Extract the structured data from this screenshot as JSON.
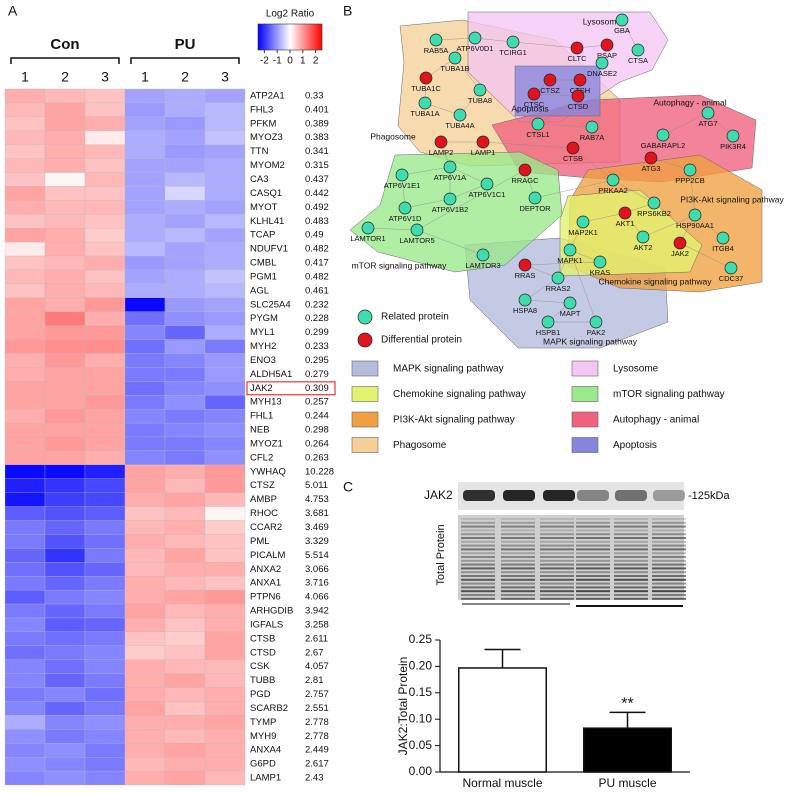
{
  "panel_labels": [
    "A",
    "B",
    "C"
  ],
  "chart_data": [
    {
      "type": "heatmap",
      "groups": [
        {
          "name": "Con",
          "columns": [
            "1",
            "2",
            "3"
          ]
        },
        {
          "name": "PU",
          "columns": [
            "1",
            "2",
            "3"
          ]
        }
      ],
      "colorbar": {
        "title": "Log2 Ratio",
        "ticks": [
          -2,
          -1,
          0,
          1,
          2
        ]
      },
      "zlim": [
        -2.5,
        2.5
      ],
      "highlight_row": 21,
      "rows": [
        "ATP2A1",
        "FHL3",
        "PFKM",
        "MYOZ3",
        "TTN",
        "MYOM2",
        "CA3",
        "CASQ1",
        "MYOT",
        "KLHL41",
        "TCAP",
        "NDUFV1",
        "CMBL",
        "PGM1",
        "AGL",
        "SLC25A4",
        "PYGM",
        "MYL1",
        "MYH2",
        "ENO3",
        "ALDH5A1",
        "JAK2",
        "MYH13",
        "FHL1",
        "NEB",
        "MYOZ1",
        "CFL2",
        "YWHAQ",
        "CTSZ",
        "AMBP",
        "RHOC",
        "CCAR2",
        "PML",
        "PICALM",
        "ANXA2",
        "ANXA1",
        "PTPN6",
        "ARHGDIB",
        "IGFALS",
        "CTSB",
        "CTSD",
        "CSK",
        "TUBB",
        "PGD",
        "SCARB2",
        "TYMP",
        "MYH9",
        "ANXA4",
        "G6PD",
        "LAMP1"
      ],
      "ratios": [
        "0.33",
        "0.401",
        "0.389",
        "0.383",
        "0.341",
        "0.315",
        "0.437",
        "0.442",
        "0.492",
        "0.483",
        "0.49",
        "0.482",
        "0.417",
        "0.482",
        "0.461",
        "0.232",
        "0.228",
        "0.299",
        "0.233",
        "0.295",
        "0.279",
        "0.309",
        "0.257",
        "0.244",
        "0.298",
        "0.264",
        "0.263",
        "10.228",
        "5.011",
        "4.753",
        "3.681",
        "3.469",
        "3.329",
        "5.514",
        "3.066",
        "3.716",
        "4.066",
        "3.942",
        "3.258",
        "2.611",
        "2.67",
        "4.057",
        "2.81",
        "2.757",
        "2.551",
        "2.778",
        "2.778",
        "2.449",
        "2.617",
        "2.43"
      ],
      "values": [
        [
          0.8,
          0.7,
          0.6,
          -0.9,
          -0.8,
          -0.9
        ],
        [
          0.7,
          0.9,
          0.6,
          -1.0,
          -0.8,
          -0.7
        ],
        [
          0.6,
          0.9,
          0.8,
          -0.9,
          -1.0,
          -0.7
        ],
        [
          0.7,
          0.8,
          0.2,
          -0.8,
          -0.9,
          -0.6
        ],
        [
          0.6,
          0.8,
          0.7,
          -0.8,
          -1.0,
          -0.9
        ],
        [
          0.7,
          0.8,
          0.6,
          -0.9,
          -0.9,
          -0.8
        ],
        [
          0.6,
          0.1,
          0.7,
          -0.9,
          -0.7,
          -0.8
        ],
        [
          0.9,
          0.6,
          0.6,
          -0.9,
          -0.4,
          -0.8
        ],
        [
          0.8,
          0.7,
          0.7,
          -0.9,
          -0.8,
          -0.9
        ],
        [
          0.6,
          0.7,
          0.6,
          -0.8,
          -0.9,
          -0.7
        ],
        [
          0.9,
          0.8,
          0.5,
          -0.8,
          -0.7,
          -0.9
        ],
        [
          0.2,
          0.8,
          0.6,
          -0.7,
          -0.9,
          -0.8
        ],
        [
          0.6,
          0.7,
          0.8,
          -1.0,
          -0.9,
          -0.8
        ],
        [
          0.7,
          0.8,
          0.6,
          -0.9,
          -0.8,
          -0.6
        ],
        [
          0.6,
          0.8,
          0.7,
          -0.8,
          -0.8,
          -0.7
        ],
        [
          0.9,
          0.8,
          1.0,
          -2.4,
          -1.0,
          -0.9
        ],
        [
          0.9,
          1.3,
          0.8,
          -1.4,
          -1.1,
          -1.0
        ],
        [
          0.9,
          1.0,
          1.0,
          -1.2,
          -1.5,
          -0.8
        ],
        [
          1.0,
          1.1,
          1.1,
          -1.4,
          -1.0,
          -1.3
        ],
        [
          0.8,
          1.0,
          0.8,
          -1.3,
          -1.2,
          -1.0
        ],
        [
          0.8,
          0.9,
          0.9,
          -1.3,
          -1.3,
          -1.0
        ],
        [
          0.9,
          0.9,
          0.9,
          -1.4,
          -1.2,
          -1.1
        ],
        [
          0.9,
          0.9,
          1.0,
          -1.3,
          -1.1,
          -1.5
        ],
        [
          0.8,
          1.0,
          0.9,
          -1.2,
          -1.3,
          -1.2
        ],
        [
          0.9,
          0.9,
          0.9,
          -1.3,
          -1.2,
          -1.1
        ],
        [
          0.9,
          1.0,
          0.9,
          -1.3,
          -1.3,
          -1.2
        ],
        [
          0.9,
          0.9,
          0.8,
          -1.2,
          -1.3,
          -1.1
        ],
        [
          -2.4,
          -2.4,
          -2.2,
          0.9,
          0.8,
          1.0
        ],
        [
          -2.2,
          -2.0,
          -1.8,
          0.9,
          0.7,
          1.0
        ],
        [
          -2.3,
          -1.9,
          -1.8,
          0.8,
          0.9,
          0.7
        ],
        [
          -1.6,
          -1.7,
          -1.6,
          0.6,
          0.7,
          0.1
        ],
        [
          -1.3,
          -1.5,
          -1.3,
          0.7,
          0.8,
          0.5
        ],
        [
          -1.3,
          -1.7,
          -1.4,
          0.8,
          0.7,
          0.6
        ],
        [
          -1.5,
          -2.0,
          -1.3,
          0.7,
          0.9,
          0.6
        ],
        [
          -1.4,
          -1.7,
          -1.5,
          0.7,
          0.8,
          0.8
        ],
        [
          -1.3,
          -1.5,
          -1.3,
          0.8,
          0.7,
          0.6
        ],
        [
          -1.6,
          -1.3,
          -1.2,
          0.8,
          0.9,
          1.0
        ],
        [
          -1.3,
          -1.5,
          -1.3,
          0.9,
          0.7,
          0.8
        ],
        [
          -1.2,
          -1.6,
          -1.5,
          0.8,
          0.6,
          0.8
        ],
        [
          -1.3,
          -1.4,
          -1.3,
          0.6,
          0.5,
          0.9
        ],
        [
          -1.4,
          -1.3,
          -1.2,
          0.5,
          0.6,
          0.9
        ],
        [
          -1.2,
          -1.4,
          -1.2,
          0.8,
          0.7,
          0.7
        ],
        [
          -1.2,
          -1.5,
          -1.3,
          0.8,
          0.9,
          0.7
        ],
        [
          -1.3,
          -1.2,
          -1.4,
          0.8,
          0.7,
          0.8
        ],
        [
          -1.2,
          -1.5,
          -1.3,
          0.9,
          0.6,
          0.8
        ],
        [
          -0.8,
          -1.2,
          -1.1,
          0.8,
          0.8,
          0.9
        ],
        [
          -1.1,
          -1.3,
          -1.2,
          0.8,
          0.7,
          0.8
        ],
        [
          -1.2,
          -1.1,
          -1.3,
          0.8,
          0.9,
          0.8
        ],
        [
          -1.1,
          -1.2,
          -1.3,
          0.7,
          0.8,
          0.8
        ],
        [
          -1.2,
          -1.1,
          -1.2,
          0.8,
          0.9,
          0.7
        ]
      ]
    },
    {
      "type": "bar",
      "categories": [
        "Normal muscle",
        "PU muscle"
      ],
      "values": [
        0.197,
        0.083
      ],
      "errors": [
        0.035,
        0.03
      ],
      "colors": [
        "#ffffff",
        "#000000"
      ],
      "y_label": "JAK2:Total Protein",
      "annotation": "**",
      "ylim": [
        0,
        0.25
      ],
      "yticks": [
        {
          "value": 0,
          "label": "0.00"
        },
        {
          "value": 0.05,
          "label": "0.05"
        },
        {
          "value": 0.1,
          "label": "0.10"
        },
        {
          "value": 0.15,
          "label": "0.15"
        },
        {
          "value": 0.2,
          "label": "0.20"
        },
        {
          "value": 0.25,
          "label": "0.25"
        }
      ]
    }
  ],
  "western_blot": {
    "protein": "JAK2",
    "size": "-125kDa",
    "loading": "Total Protein"
  },
  "network": {
    "node_kinds": [
      {
        "kind": "related",
        "label": "Related protein",
        "color": "#3fdcae"
      },
      {
        "kind": "differential",
        "label": "Differential protein",
        "color": "#e0141e"
      }
    ],
    "pathways": [
      {
        "name": "MAPK signaling pathway",
        "color": "#b4bbdb"
      },
      {
        "name": "Lysosome",
        "color": "#f3c6f3"
      },
      {
        "name": "Chemokine signaling pathway",
        "color": "#e2f26e"
      },
      {
        "name": "mTOR signaling pathway",
        "color": "#9ae98a"
      },
      {
        "name": "PI3K-Akt signaling pathway",
        "color": "#f0a040"
      },
      {
        "name": "Autophagy - animal",
        "color": "#f0607f"
      },
      {
        "name": "Phagosome",
        "color": "#f6cf98"
      },
      {
        "name": "Apoptosis",
        "color": "#8585dd"
      }
    ],
    "nodes": [
      {
        "label": "RAB5A",
        "kind": "related"
      },
      {
        "label": "ATP6V0D1",
        "kind": "related"
      },
      {
        "label": "TCIRG1",
        "kind": "related"
      },
      {
        "label": "GBA",
        "kind": "related"
      },
      {
        "label": "CLTC",
        "kind": "differential"
      },
      {
        "label": "PSAP",
        "kind": "differential"
      },
      {
        "label": "DNASE2",
        "kind": "related"
      },
      {
        "label": "CTSA",
        "kind": "related"
      },
      {
        "label": "TUBA1B",
        "kind": "related"
      },
      {
        "label": "TUBA1C",
        "kind": "differential"
      },
      {
        "label": "TUBA8",
        "kind": "related"
      },
      {
        "label": "TUBA1A",
        "kind": "related"
      },
      {
        "label": "TUBA4A",
        "kind": "related"
      },
      {
        "label": "CTSZ",
        "kind": "differential"
      },
      {
        "label": "CTSH",
        "kind": "differential"
      },
      {
        "label": "CTSC",
        "kind": "differential"
      },
      {
        "label": "CTSD",
        "kind": "differential"
      },
      {
        "label": "CTSL1",
        "kind": "related"
      },
      {
        "label": "RAB7A",
        "kind": "related"
      },
      {
        "label": "LAMP2",
        "kind": "differential"
      },
      {
        "label": "LAMP1",
        "kind": "differential"
      },
      {
        "label": "CTSB",
        "kind": "differential"
      },
      {
        "label": "GABARAPL2",
        "kind": "related"
      },
      {
        "label": "ATG7",
        "kind": "related"
      },
      {
        "label": "PIK3R4",
        "kind": "related"
      },
      {
        "label": "ATG3",
        "kind": "differential"
      },
      {
        "label": "PPP2CB",
        "kind": "related"
      },
      {
        "label": "ATP6V1A",
        "kind": "related"
      },
      {
        "label": "ATP6V1E1",
        "kind": "related"
      },
      {
        "label": "ATP6V1C1",
        "kind": "related"
      },
      {
        "label": "ATP6V1B2",
        "kind": "related"
      },
      {
        "label": "ATP6V1D",
        "kind": "related"
      },
      {
        "label": "RRAGC",
        "kind": "differential"
      },
      {
        "label": "DEPTOR",
        "kind": "related"
      },
      {
        "label": "LAMTOR1",
        "kind": "related"
      },
      {
        "label": "LAMTOR5",
        "kind": "related"
      },
      {
        "label": "LAMTOR3",
        "kind": "related"
      },
      {
        "label": "PRKAA2",
        "kind": "related"
      },
      {
        "label": "RPS6KB2",
        "kind": "related"
      },
      {
        "label": "AKT1",
        "kind": "differential"
      },
      {
        "label": "MAP2K1",
        "kind": "related"
      },
      {
        "label": "AKT2",
        "kind": "related"
      },
      {
        "label": "HSP90AA1",
        "kind": "related"
      },
      {
        "label": "ITGB4",
        "kind": "related"
      },
      {
        "label": "JAK2",
        "kind": "differential"
      },
      {
        "label": "CDC37",
        "kind": "related"
      },
      {
        "label": "MAPK1",
        "kind": "related"
      },
      {
        "label": "KRAS",
        "kind": "related"
      },
      {
        "label": "RRAS",
        "kind": "differential"
      },
      {
        "label": "RRAS2",
        "kind": "related"
      },
      {
        "label": "HSPA8",
        "kind": "related"
      },
      {
        "label": "MAPT",
        "kind": "related"
      },
      {
        "label": "HSPB1",
        "kind": "related"
      },
      {
        "label": "PAK2",
        "kind": "related"
      }
    ]
  }
}
